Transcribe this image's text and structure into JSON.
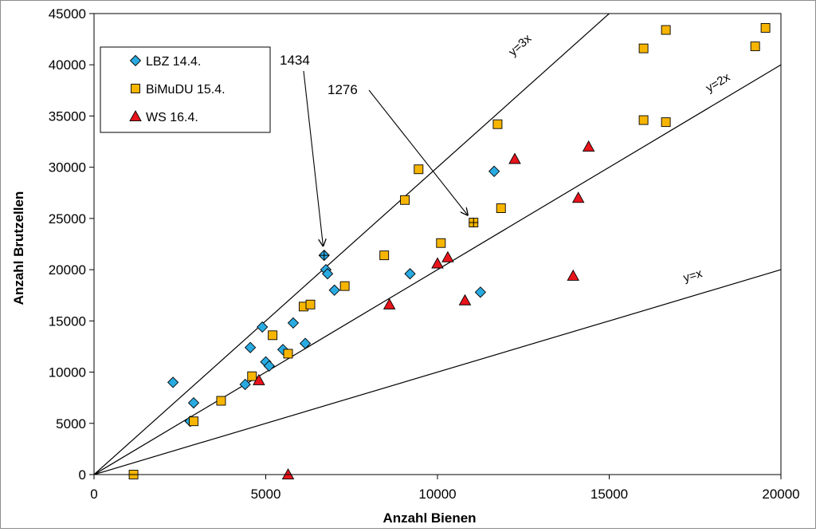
{
  "chart_data": {
    "type": "scatter",
    "xlabel": "Anzahl Bienen",
    "ylabel": "Anzahl Brutzellen",
    "xlim": [
      0,
      20000
    ],
    "ylim": [
      0,
      45000
    ],
    "x_ticks": [
      "0",
      "5000",
      "10000",
      "15000",
      "20000"
    ],
    "y_ticks": [
      "0",
      "5000",
      "10000",
      "15000",
      "20000",
      "25000",
      "30000",
      "35000",
      "40000",
      "45000"
    ],
    "legend_position": "top-left",
    "series": [
      {
        "name": "LBZ 14.4.",
        "marker": "diamond",
        "color": "#29ABE2",
        "points": [
          [
            2300,
            9000
          ],
          [
            2800,
            5200
          ],
          [
            2900,
            7000
          ],
          [
            4400,
            8800
          ],
          [
            4550,
            12400
          ],
          [
            4900,
            14400
          ],
          [
            5000,
            11000
          ],
          [
            5100,
            10600
          ],
          [
            5500,
            12200
          ],
          [
            5800,
            14800
          ],
          [
            6150,
            12800
          ],
          [
            6700,
            21400
          ],
          [
            6750,
            20000
          ],
          [
            6800,
            19600
          ],
          [
            7000,
            18000
          ],
          [
            9200,
            19600
          ],
          [
            11250,
            17800
          ],
          [
            11650,
            29600
          ]
        ]
      },
      {
        "name": "BiMuDU 15.4.",
        "marker": "square",
        "color": "#F7B500",
        "points": [
          [
            1150,
            0
          ],
          [
            2900,
            5200
          ],
          [
            3700,
            7200
          ],
          [
            4600,
            9600
          ],
          [
            5200,
            13600
          ],
          [
            5650,
            11800
          ],
          [
            6100,
            16400
          ],
          [
            6300,
            16600
          ],
          [
            7300,
            18400
          ],
          [
            8450,
            21400
          ],
          [
            9050,
            26800
          ],
          [
            9450,
            29800
          ],
          [
            10100,
            22600
          ],
          [
            11050,
            24600
          ],
          [
            11750,
            34200
          ],
          [
            11850,
            26000
          ],
          [
            16000,
            41600
          ],
          [
            16000,
            34600
          ],
          [
            16650,
            43400
          ],
          [
            16650,
            34400
          ],
          [
            19250,
            41800
          ],
          [
            19550,
            43600
          ]
        ]
      },
      {
        "name": "WS 16.4.",
        "marker": "triangle",
        "color": "#E8141C",
        "points": [
          [
            4800,
            9200
          ],
          [
            5650,
            0
          ],
          [
            8600,
            16600
          ],
          [
            10000,
            20600
          ],
          [
            10300,
            21200
          ],
          [
            10800,
            17000
          ],
          [
            12250,
            30800
          ],
          [
            13950,
            19400
          ],
          [
            14100,
            27000
          ],
          [
            14400,
            32000
          ]
        ]
      }
    ],
    "reference_lines": [
      {
        "label": "y=x",
        "slope": 1
      },
      {
        "label": "y=2x",
        "slope": 2
      },
      {
        "label": "y=3x",
        "slope": 3
      }
    ],
    "annotations": [
      {
        "text": "1434",
        "target": [
          6700,
          21400
        ]
      },
      {
        "text": "1276",
        "target": [
          11050,
          24600
        ]
      }
    ],
    "highlighted_points": [
      [
        6700,
        21400
      ],
      [
        11050,
        24600
      ]
    ]
  }
}
